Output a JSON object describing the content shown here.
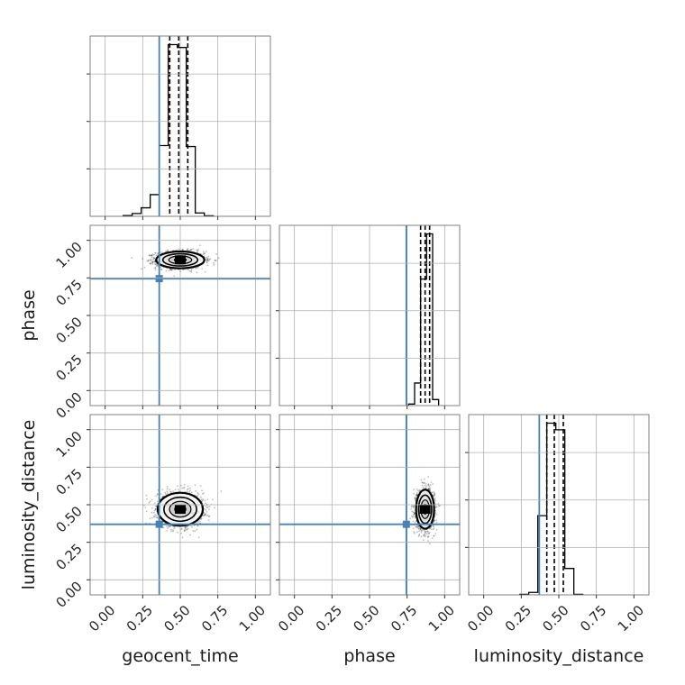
{
  "chart_data": {
    "type": "corner",
    "params": [
      "geocent_time",
      "phase",
      "luminosity_distance"
    ],
    "axis_labels": {
      "x": [
        "geocent_time",
        "phase",
        "luminosity_distance"
      ],
      "y": [
        "phase",
        "luminosity_distance"
      ]
    },
    "ticks": [
      0.0,
      0.25,
      0.5,
      0.75,
      1.0
    ],
    "tick_labels": [
      "0.00",
      "0.25",
      "0.50",
      "0.75",
      "1.00"
    ],
    "xlim": [
      -0.1,
      1.1
    ],
    "ylim": [
      -0.1,
      1.1
    ],
    "grid": true,
    "truths": {
      "geocent_time": 0.36,
      "phase": 0.745,
      "luminosity_distance": 0.37,
      "color": "#4682b4"
    },
    "quantile_lines": {
      "geocent_time": [
        0.43,
        0.49,
        0.55
      ],
      "phase": [
        0.84,
        0.87,
        0.9
      ],
      "luminosity_distance": [
        0.42,
        0.47,
        0.53
      ]
    },
    "histograms": [
      {
        "param": "geocent_time",
        "bin_edges": [
          0.12,
          0.18,
          0.24,
          0.3,
          0.36,
          0.42,
          0.48,
          0.54,
          0.6,
          0.66,
          0.72
        ],
        "counts": [
          0.4,
          1.5,
          4.5,
          11.5,
          37.5,
          91.0,
          89.5,
          37.0,
          1.8,
          0.3
        ]
      },
      {
        "param": "phase",
        "bin_edges": [
          0.76,
          0.8,
          0.84,
          0.88,
          0.92,
          0.96
        ],
        "counts": [
          1.0,
          15.0,
          84.0,
          114.0,
          4.0
        ]
      },
      {
        "param": "luminosity_distance",
        "bin_edges": [
          0.24,
          0.3,
          0.36,
          0.42,
          0.48,
          0.54,
          0.6,
          0.66
        ],
        "counts": [
          0.3,
          1.5,
          48.0,
          104.0,
          100.0,
          16.0,
          0.3
        ]
      }
    ],
    "posterior_2d": [
      {
        "x": "geocent_time",
        "y": "phase",
        "center": [
          0.5,
          0.87
        ],
        "spread": [
          0.08,
          0.028
        ]
      },
      {
        "x": "geocent_time",
        "y": "luminosity_distance",
        "center": [
          0.5,
          0.47
        ],
        "spread": [
          0.075,
          0.055
        ]
      },
      {
        "x": "phase",
        "y": "luminosity_distance",
        "center": [
          0.87,
          0.47
        ],
        "spread": [
          0.03,
          0.065
        ]
      }
    ],
    "colors": {
      "samples": "#000000",
      "truth": "#4682b4",
      "grid": "#b0b0b0",
      "frame": "#808080"
    }
  }
}
